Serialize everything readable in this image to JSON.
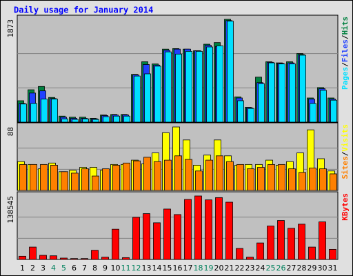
{
  "title": "Daily usage for January 2014",
  "legend_separator": "/",
  "chart_data": [
    {
      "type": "bar",
      "ylim": [
        0,
        1873
      ],
      "yticks": [
        1873
      ],
      "series": [
        {
          "name": "Hits",
          "color": "#008040",
          "values": [
            390,
            590,
            650,
            450,
            110,
            90,
            90,
            70,
            130,
            140,
            140,
            870,
            1100,
            1060,
            1330,
            1340,
            1330,
            1300,
            1420,
            1450,
            1873,
            460,
            270,
            820,
            1100,
            1080,
            1100,
            1250,
            440,
            630,
            440
          ]
        },
        {
          "name": "Files",
          "color": "#2040ff",
          "values": [
            340,
            530,
            570,
            430,
            90,
            70,
            70,
            60,
            120,
            130,
            130,
            860,
            1050,
            1040,
            1310,
            1330,
            1330,
            1300,
            1400,
            1380,
            1850,
            440,
            260,
            720,
            1090,
            1070,
            1080,
            1230,
            420,
            610,
            420
          ]
        },
        {
          "name": "Pages",
          "color": "#00e0ff",
          "values": [
            330,
            340,
            420,
            420,
            60,
            50,
            60,
            50,
            100,
            110,
            110,
            840,
            880,
            1020,
            1280,
            1240,
            1290,
            1290,
            1370,
            1390,
            1840,
            390,
            250,
            700,
            1080,
            1060,
            1060,
            1220,
            340,
            580,
            400
          ]
        }
      ]
    },
    {
      "type": "bar",
      "ylim": [
        0,
        88
      ],
      "yticks": [
        88
      ],
      "series": [
        {
          "name": "Visits",
          "color": "#ffff00",
          "values": [
            40,
            36,
            30,
            38,
            26,
            28,
            32,
            32,
            28,
            36,
            36,
            42,
            37,
            52,
            80,
            88,
            70,
            35,
            49,
            70,
            48,
            35,
            36,
            36,
            42,
            35,
            40,
            52,
            84,
            44,
            27
          ]
        },
        {
          "name": "Sites",
          "color": "#ff8000",
          "values": [
            36,
            36,
            36,
            35,
            26,
            24,
            30,
            20,
            30,
            35,
            38,
            41,
            46,
            40,
            42,
            48,
            43,
            27,
            42,
            48,
            40,
            36,
            30,
            32,
            36,
            36,
            30,
            25,
            31,
            30,
            23
          ]
        }
      ]
    },
    {
      "type": "bar",
      "ylim": [
        0,
        138545
      ],
      "yticks": [
        138545
      ],
      "categories": [
        "1",
        "2",
        "3",
        "4",
        "5",
        "6",
        "7",
        "8",
        "9",
        "10",
        "11",
        "12",
        "13",
        "14",
        "15",
        "16",
        "17",
        "18",
        "19",
        "20",
        "21",
        "22",
        "23",
        "24",
        "25",
        "26",
        "27",
        "28",
        "29",
        "30",
        "31"
      ],
      "x_label_colors": [
        "#000",
        "#000",
        "#000",
        "#00805c",
        "#00805c",
        "#000",
        "#000",
        "#000",
        "#000",
        "#000",
        "#00805c",
        "#00805c",
        "#000",
        "#000",
        "#000",
        "#000",
        "#000",
        "#00805c",
        "#00805c",
        "#000",
        "#000",
        "#000",
        "#000",
        "#000",
        "#00805c",
        "#00805c",
        "#000",
        "#000",
        "#000",
        "#000",
        "#000"
      ],
      "series": [
        {
          "name": "KBytes",
          "color": "#ff0000",
          "values": [
            7000,
            27000,
            9000,
            8000,
            3000,
            2000,
            2000,
            20000,
            5000,
            66000,
            4000,
            92000,
            100000,
            80000,
            110000,
            98000,
            131000,
            138545,
            130000,
            135000,
            125000,
            24000,
            5000,
            36000,
            73000,
            85000,
            68000,
            77000,
            27000,
            82000,
            22000
          ]
        }
      ]
    }
  ]
}
